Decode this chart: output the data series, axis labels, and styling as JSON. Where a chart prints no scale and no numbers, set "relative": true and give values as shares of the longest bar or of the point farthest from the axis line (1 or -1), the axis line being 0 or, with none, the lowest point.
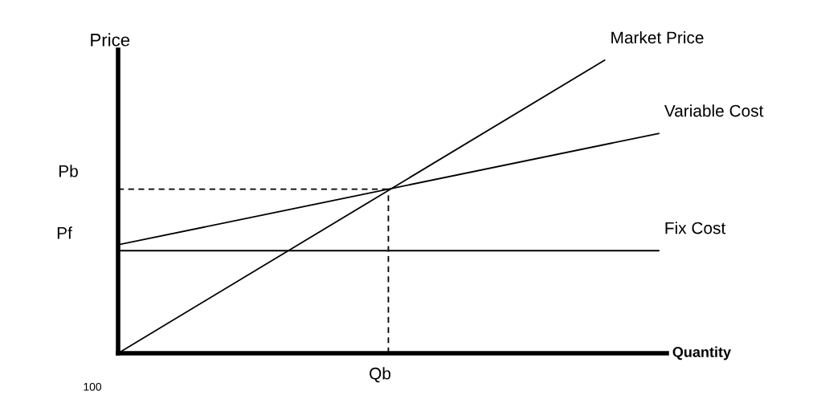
{
  "chart_data": {
    "type": "line",
    "relative": true,
    "xlabel": "Quantity",
    "ylabel": "Price",
    "marker": "none",
    "legend": false,
    "categories": [
      null,
      null,
      null,
      null,
      null,
      null,
      null,
      null,
      null,
      null,
      null,
      null,
      null,
      null,
      null,
      null,
      null,
      null,
      null,
      null,
      null
    ],
    "series": [
      {
        "name": "Market Price",
        "color": "#000000",
        "values": [
          0,
          null,
          null,
          null,
          null,
          null,
          null,
          null,
          null,
          null,
          null,
          null,
          null,
          null,
          null,
          null,
          null,
          null,
          1,
          null,
          null
        ]
      },
      {
        "name": "Variable Cost",
        "color": "#000000",
        "values": [
          0.37,
          null,
          null,
          null,
          null,
          null,
          null,
          null,
          null,
          null,
          null,
          null,
          null,
          null,
          null,
          null,
          null,
          null,
          null,
          null,
          0.75
        ]
      },
      {
        "name": "Fix Cost",
        "color": "#000000",
        "values": [
          0.35,
          null,
          null,
          null,
          null,
          null,
          null,
          null,
          null,
          null,
          null,
          null,
          null,
          null,
          null,
          null,
          null,
          null,
          null,
          null,
          0.35
        ]
      },
      {
        "color": "#000000",
        "line_style": "dashed",
        "values": [
          0.56,
          null,
          null,
          null,
          null,
          null,
          null,
          null,
          null,
          null,
          0.56,
          null,
          null,
          null,
          null,
          null,
          null,
          null,
          null,
          null,
          null
        ]
      }
    ],
    "annotations": [
      "Pb",
      "Pf",
      "Qb",
      "100"
    ]
  }
}
